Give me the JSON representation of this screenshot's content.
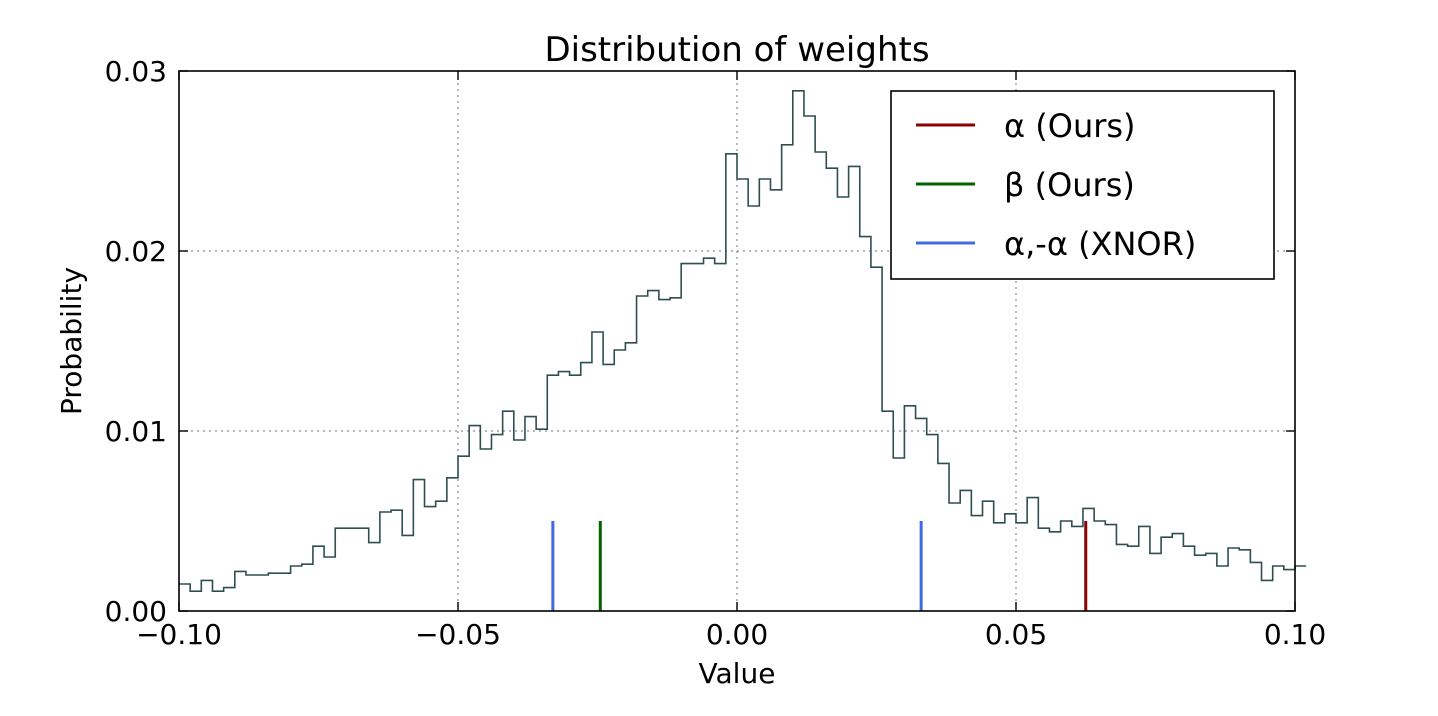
{
  "chart_data": {
    "type": "histogram",
    "title": "Distribution of weights",
    "xlabel": "Value",
    "ylabel": "Probability",
    "xlim": [
      -0.1,
      0.1
    ],
    "ylim": [
      0.0,
      0.03
    ],
    "xticks": [
      -0.1,
      -0.05,
      0.0,
      0.05,
      0.1
    ],
    "xtick_labels": [
      "−0.10",
      "−0.05",
      "0.00",
      "0.05",
      "0.10"
    ],
    "yticks": [
      0.0,
      0.01,
      0.02,
      0.03
    ],
    "ytick_labels": [
      "0.00",
      "0.01",
      "0.02",
      "0.03"
    ],
    "grid": true,
    "legend_position": "top-right",
    "histogram": {
      "color": "#2f4f4f",
      "bin_start": -0.1,
      "bin_width": 0.002,
      "values": [
        0.0015,
        0.0011,
        0.0017,
        0.0011,
        0.0013,
        0.0022,
        0.002,
        0.002,
        0.0021,
        0.0021,
        0.0025,
        0.0026,
        0.0036,
        0.003,
        0.0046,
        0.0046,
        0.0046,
        0.0038,
        0.0055,
        0.0056,
        0.0042,
        0.0073,
        0.0058,
        0.0061,
        0.0074,
        0.0086,
        0.0103,
        0.009,
        0.0098,
        0.0111,
        0.0095,
        0.0108,
        0.0101,
        0.0131,
        0.0133,
        0.0131,
        0.0138,
        0.0155,
        0.0137,
        0.0145,
        0.0149,
        0.0175,
        0.0178,
        0.0173,
        0.0174,
        0.0193,
        0.0193,
        0.0196,
        0.0193,
        0.0254,
        0.024,
        0.0225,
        0.024,
        0.0234,
        0.0259,
        0.0289,
        0.0275,
        0.0255,
        0.0246,
        0.023,
        0.0247,
        0.0208,
        0.0191,
        0.0111,
        0.0085,
        0.0114,
        0.0107,
        0.0098,
        0.0082,
        0.006,
        0.0067,
        0.0053,
        0.0061,
        0.0049,
        0.0054,
        0.0049,
        0.0063,
        0.0046,
        0.0044,
        0.005,
        0.0047,
        0.0057,
        0.005,
        0.0048,
        0.0037,
        0.0036,
        0.0047,
        0.0032,
        0.0041,
        0.0043,
        0.0036,
        0.0031,
        0.0032,
        0.0025,
        0.0035,
        0.0034,
        0.0027,
        0.0017,
        0.0025,
        0.0023,
        0.0025
      ]
    },
    "series": [
      {
        "name": "α (Ours)",
        "color": "#8b0000",
        "x": [
          0.0625
        ],
        "height": 0.005
      },
      {
        "name": "β (Ours)",
        "color": "#006400",
        "x": [
          -0.0245
        ],
        "height": 0.005
      },
      {
        "name": "α,-α (XNOR)",
        "color": "#4169e1",
        "x": [
          -0.033,
          0.033
        ],
        "height": 0.005
      }
    ]
  }
}
